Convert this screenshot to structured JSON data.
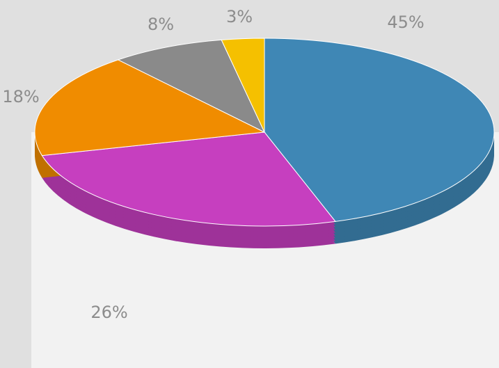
{
  "chart_data": {
    "type": "pie",
    "values": [
      45,
      26,
      18,
      8,
      3
    ],
    "value_labels": [
      "45%",
      "26%",
      "18%",
      "8%",
      "3%"
    ],
    "colors": [
      "#3f87b5",
      "#c63fbf",
      "#f08c00",
      "#8a8a8a",
      "#f5c000"
    ]
  }
}
